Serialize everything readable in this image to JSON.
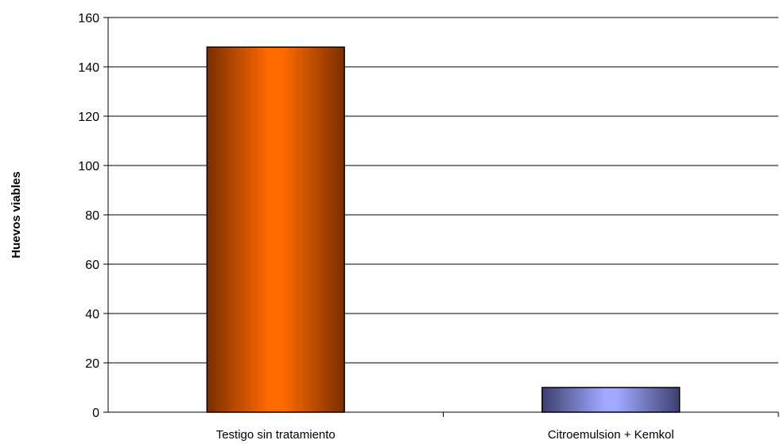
{
  "chart_data": {
    "type": "bar",
    "title": "",
    "xlabel": "",
    "ylabel": "Huevos viables",
    "categories": [
      "Testigo sin tratamiento",
      "Citroemulsion + Kemkol"
    ],
    "values": [
      148,
      10
    ],
    "ylim": [
      0,
      160
    ],
    "yticks": [
      0,
      20,
      40,
      60,
      80,
      100,
      120,
      140,
      160
    ],
    "yticks_text": [
      "0",
      "20",
      "40",
      "60",
      "80",
      "100",
      "120",
      "140",
      "160"
    ],
    "grid": true,
    "legend": "none",
    "colors": {
      "bar_1_light": "#ff6a00",
      "bar_1_dark": "#7a2e00",
      "bar_2_light": "#a0a8ff",
      "bar_2_dark": "#3c3f6e",
      "grid": "#000000",
      "axis": "#000000"
    }
  }
}
